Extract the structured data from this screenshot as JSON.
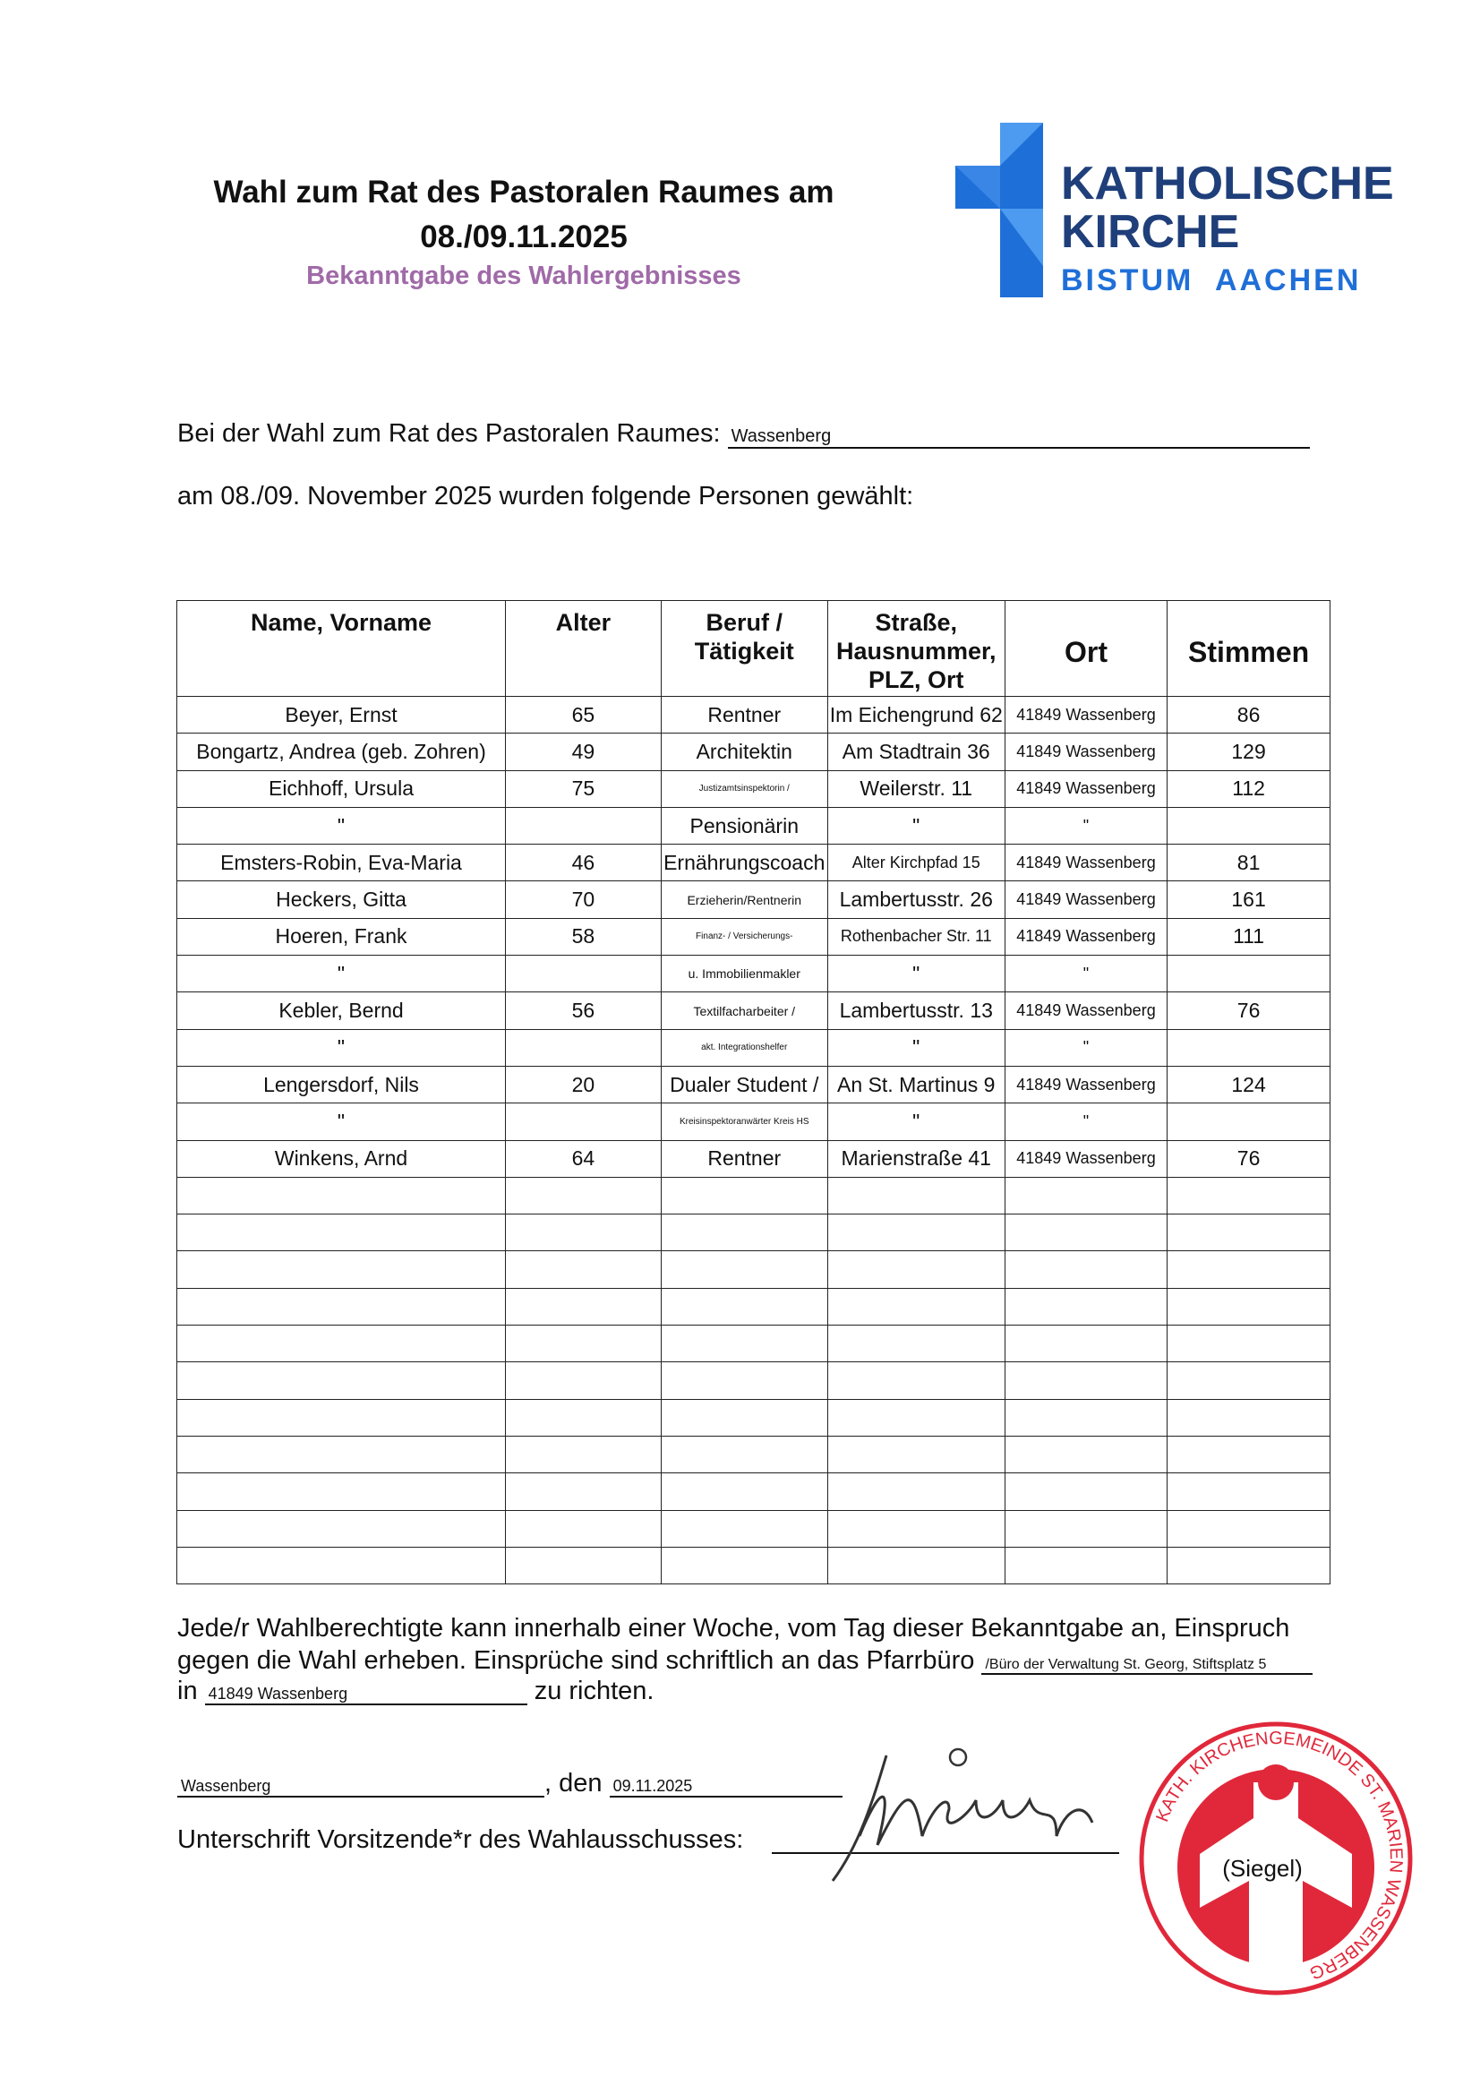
{
  "header": {
    "title_line1": "Wahl zum Rat des Pastoralen Raumes am",
    "title_line2": "08./09.11.2025",
    "subtitle": "Bekanntgabe des Wahlergebnisses"
  },
  "logo": {
    "line1": "KATHOLISCHE",
    "line2": "KIRCHE",
    "line3": "BISTUM  AACHEN",
    "color": "#1f6fd8"
  },
  "intro": {
    "label1": "Bei der Wahl zum Rat des Pastoralen Raumes:",
    "raum": "Wassenberg",
    "line2": "am 08./09. November 2025 wurden folgende Personen gewählt:"
  },
  "table": {
    "headers": [
      "Name, Vorname",
      "Alter",
      "Beruf / Tätigkeit",
      "Straße, Hausnummer, PLZ, Ort",
      "Ort",
      "Stimmen"
    ],
    "rows": [
      [
        "Beyer, Ernst",
        "65",
        "Rentner",
        "Im Eichengrund 62",
        "41849 Wassenberg",
        "86"
      ],
      [
        "Bongartz, Andrea (geb. Zohren)",
        "49",
        "Architektin",
        "Am Stadtrain 36",
        "41849 Wassenberg",
        "129"
      ],
      [
        "Eichhoff, Ursula",
        "75",
        "Justizamtsinspektorin /",
        "Weilerstr. 11",
        "41849 Wassenberg",
        "112"
      ],
      [
        "\"",
        "",
        "Pensionärin",
        "\"",
        "\"",
        ""
      ],
      [
        "Emsters-Robin, Eva-Maria",
        "46",
        "Ernährungscoach",
        "Alter Kirchpfad 15",
        "41849 Wassenberg",
        "81"
      ],
      [
        "Heckers, Gitta",
        "70",
        "Erzieherin/Rentnerin",
        "Lambertusstr. 26",
        "41849 Wassenberg",
        "161"
      ],
      [
        "Hoeren, Frank",
        "58",
        "Finanz- / Versicherungs-",
        "Rothenbacher Str. 11",
        "41849 Wassenberg",
        "111"
      ],
      [
        "\"",
        "",
        "u. Immobilienmakler",
        "\"",
        "\"",
        ""
      ],
      [
        "Kebler, Bernd",
        "56",
        "Textilfacharbeiter /",
        "Lambertusstr. 13",
        "41849 Wassenberg",
        "76"
      ],
      [
        "\"",
        "",
        "akt. Integrationshelfer",
        "\"",
        "\"",
        ""
      ],
      [
        "Lengersdorf, Nils",
        "20",
        "Dualer Student /",
        "An St. Martinus 9",
        "41849 Wassenberg",
        "124"
      ],
      [
        "\"",
        "",
        "Kreisinspektoranwärter Kreis HS",
        "\"",
        "\"",
        ""
      ],
      [
        "Winkens, Arnd",
        "64",
        "Rentner",
        "Marienstraße 41",
        "41849 Wassenberg",
        "76"
      ]
    ]
  },
  "notice": {
    "line1": "Jede/r Wahlberechtigte kann innerhalb einer Woche, vom Tag dieser Bekanntgabe an, Einspruch",
    "line2": "gegen die Wahl erheben. Einsprüche sind schriftlich an das Pfarrbüro",
    "pfarrbuero": "/Büro der Verwaltung St. Georg, Stiftsplatz 5",
    "in": "in",
    "ort": "41849 Wassenberg",
    "end": "zu richten."
  },
  "signature": {
    "place": "Wassenberg",
    "den": ", den",
    "date": "09.11.2025",
    "label": "Unterschrift Vorsitzende*r des Wahlausschusses:",
    "seal_label": "(Siegel)",
    "seal_text": "KATH. KIRCHENGEMEINDE ST. MARIEN WASSENBERG",
    "seal_color": "#e0283a"
  }
}
